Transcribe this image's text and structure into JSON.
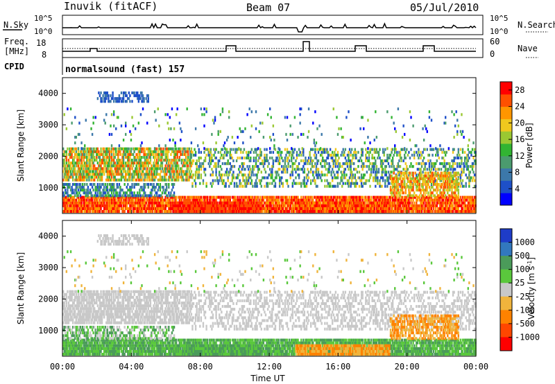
{
  "header": {
    "station": "Inuvik (fitACF)",
    "beam": "Beam 07",
    "date": "05/Jul/2010"
  },
  "top_panels": {
    "nsky_label": "N.Sky",
    "nsky_ticks": [
      "10^5",
      "10^0"
    ],
    "nsearch_label": "N.Search",
    "nsearch_ticks": [
      "10^5",
      "10^0"
    ],
    "freq_label_1": "Freq.",
    "freq_label_2": "[MHz]",
    "freq_ticks": [
      "18",
      "8"
    ],
    "nave_label": "Nave",
    "nave_ticks": [
      "60",
      "0"
    ],
    "cpid_label": "CPID",
    "cpid_value": "normalsound (fast) 157"
  },
  "chart_data": [
    {
      "type": "heatmap",
      "panel": "power",
      "ylabel": "Slant Range [km]",
      "y_ticks": [
        "4000",
        "3000",
        "2000",
        "1000"
      ],
      "ylim": [
        180,
        4500
      ],
      "colorbar_label": "Power [dB]",
      "colorbar_ticks": [
        "28",
        "24",
        "20",
        "16",
        "12",
        "8",
        "4"
      ],
      "colorbar_range": [
        0,
        30
      ],
      "colors": [
        "#0000ff",
        "#1e50c8",
        "#3c78aa",
        "#4b9b6e",
        "#32b432",
        "#9bc832",
        "#f0c81e",
        "#ff9600",
        "#ff5000",
        "#ff0000"
      ]
    },
    {
      "type": "heatmap",
      "panel": "velocity",
      "ylabel": "Slant Range [km]",
      "y_ticks": [
        "4000",
        "3000",
        "2000",
        "1000"
      ],
      "ylim": [
        180,
        4500
      ],
      "colorbar_label": "Velocity [m s^-1]",
      "colorbar_ticks": [
        "1000",
        "500",
        "100",
        "25",
        "-25",
        "-100",
        "-500",
        "-1000"
      ],
      "colors": [
        "#1e3cc8",
        "#3278be",
        "#4b9b5a",
        "#5ac83c",
        "#c8c8c8",
        "#f0b43c",
        "#ff8200",
        "#ff4600",
        "#ff0000"
      ]
    }
  ],
  "xaxis": {
    "label": "Time UT",
    "ticks": [
      "00:00",
      "04:00",
      "08:00",
      "12:00",
      "16:00",
      "20:00",
      "00:00"
    ]
  }
}
